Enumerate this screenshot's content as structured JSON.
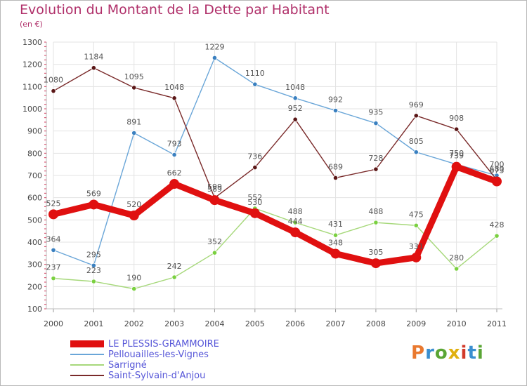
{
  "title": "Evolution du Montant de la Dette par Habitant",
  "subtitle": "(en €)",
  "logo": {
    "text": "Proxiti",
    "colors": [
      "#e9792f",
      "#3a8fd0",
      "#5aa535",
      "#e0b010",
      "#d23a2a",
      "#3a8fd0",
      "#5aa535"
    ]
  },
  "chart_data": {
    "type": "line",
    "title": "Evolution du Montant de la Dette par Habitant",
    "subtitle": "(en €)",
    "xlabel": "",
    "ylabel": "",
    "x": [
      "2000",
      "2001",
      "2002",
      "2003",
      "2004",
      "2005",
      "2006",
      "2007",
      "2008",
      "2009",
      "2010",
      "2011"
    ],
    "ylim": [
      100,
      1300
    ],
    "yticks": [
      100,
      200,
      300,
      400,
      500,
      600,
      700,
      800,
      900,
      1000,
      1100,
      1200,
      1300
    ],
    "grid": true,
    "legend": "bottom-left",
    "series": [
      {
        "name": "LE PLESSIS-GRAMMOIRE",
        "color": "#e01010",
        "values": [
          525,
          569,
          520,
          662,
          589,
          530,
          444,
          348,
          305,
          331,
          739,
          673
        ]
      },
      {
        "name": "Pellouailles-les-Vignes",
        "color": "#6aa6d8",
        "values": [
          364,
          295,
          891,
          793,
          1229,
          1110,
          1048,
          992,
          935,
          805,
          750,
          700
        ]
      },
      {
        "name": "Sarrigné",
        "color": "#a6d87a",
        "values": [
          237,
          223,
          190,
          242,
          352,
          552,
          488,
          431,
          488,
          475,
          280,
          428
        ]
      },
      {
        "name": "Saint-Sylvain-d'Anjou",
        "color": "#7a2a2a",
        "values": [
          1080,
          1184,
          1095,
          1048,
          599,
          736,
          952,
          689,
          728,
          969,
          908,
          680
        ]
      }
    ]
  }
}
